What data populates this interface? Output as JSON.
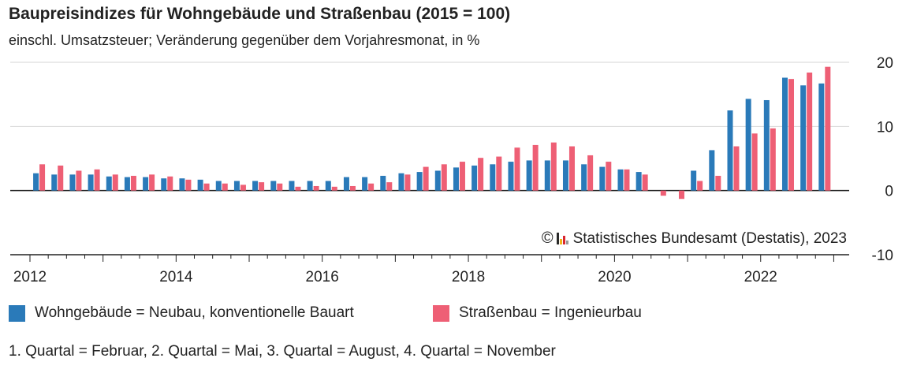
{
  "title": "Baupreisindizes für Wohngebäude und Straßenbau (2015 = 100)",
  "subtitle": "einschl. Umsatzsteuer; Veränderung gegenüber dem Vorjahresmonat, in %",
  "credit": {
    "symbol": "©",
    "text": "Statistisches Bundesamt (Destatis), 2023"
  },
  "legend": [
    {
      "label": "Wohngebäude = Neubau, konventionelle Bauart",
      "color": "#2a7ab9"
    },
    {
      "label": "Straßenbau = Ingenieurbau",
      "color": "#ee5f75"
    }
  ],
  "note": "1. Quartal = Februar, 2. Quartal = Mai, 3. Quartal = August, 4. Quartal = November",
  "chart_data": {
    "type": "bar",
    "x_ticks": [
      "2012",
      "2014",
      "2016",
      "2018",
      "2020",
      "2022"
    ],
    "y_ticks": [
      "20",
      "10",
      "0",
      "-10"
    ],
    "ylim": [
      -10,
      20
    ],
    "xlim": [
      2012.0,
      2023.125
    ],
    "grid": true,
    "quarters": [
      2012.125,
      2012.375,
      2012.625,
      2012.875,
      2013.125,
      2013.375,
      2013.625,
      2013.875,
      2014.125,
      2014.375,
      2014.625,
      2014.875,
      2015.125,
      2015.375,
      2015.625,
      2015.875,
      2016.125,
      2016.375,
      2016.625,
      2016.875,
      2017.125,
      2017.375,
      2017.625,
      2017.875,
      2018.125,
      2018.375,
      2018.625,
      2018.875,
      2019.125,
      2019.375,
      2019.625,
      2019.875,
      2020.125,
      2020.375,
      2020.625,
      2020.875,
      2021.125,
      2021.375,
      2021.625,
      2021.875,
      2022.125,
      2022.375,
      2022.625,
      2022.875
    ],
    "series": [
      {
        "name": "Wohngebäude = Neubau, konventionelle Bauart",
        "color": "#2a7ab9",
        "values": [
          2.7,
          2.5,
          2.5,
          2.5,
          2.2,
          2.1,
          2.1,
          1.9,
          1.9,
          1.7,
          1.5,
          1.5,
          1.5,
          1.5,
          1.5,
          1.5,
          1.5,
          2.1,
          2.1,
          2.3,
          2.7,
          2.9,
          3.1,
          3.6,
          3.9,
          4.1,
          4.5,
          4.7,
          4.7,
          4.7,
          4.1,
          3.7,
          3.3,
          2.9,
          0,
          0,
          3.1,
          6.3,
          12.5,
          14.3,
          14.1,
          17.6,
          16.4,
          16.7
        ]
      },
      {
        "name": "Straßenbau = Ingenieurbau",
        "color": "#ee5f75",
        "values": [
          4.1,
          3.9,
          3.1,
          3.3,
          2.5,
          2.3,
          2.5,
          2.2,
          1.7,
          1.1,
          1.1,
          0.9,
          1.3,
          1.1,
          0.6,
          0.7,
          0.6,
          0.7,
          1.1,
          1.3,
          2.5,
          3.7,
          4.1,
          4.5,
          5.1,
          5.3,
          6.7,
          7.1,
          7.5,
          6.9,
          5.5,
          4.5,
          3.3,
          2.5,
          -0.8,
          -1.3,
          1.5,
          2.3,
          6.9,
          8.9,
          9.7,
          17.4,
          18.4,
          19.3
        ]
      }
    ]
  }
}
